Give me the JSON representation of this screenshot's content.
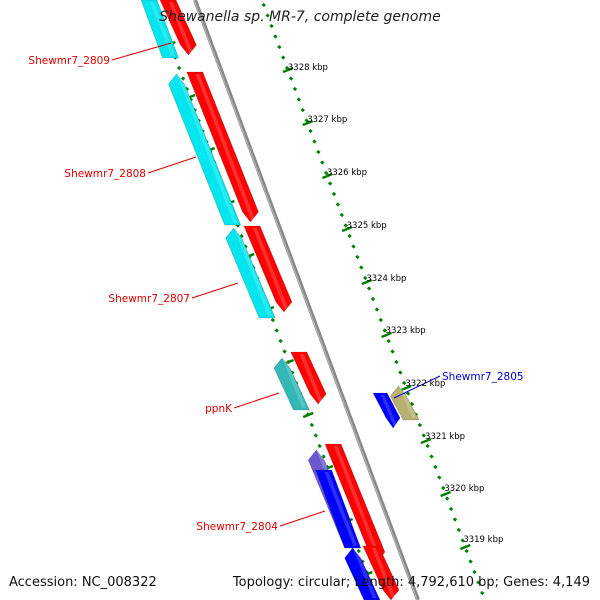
{
  "title": "Shewanella sp. MR-7, complete genome",
  "footer": {
    "accession": "Accession: NC_008322",
    "summary": "Topology: circular; Length: 4,792,610 bp; Genes: 4,149"
  },
  "colors": {
    "forward_cds": "#ff0000",
    "reverse_cds": "#00e5ee",
    "reverse_cds_alt": "#33b8b8",
    "other_feature": "#0000ff",
    "other_feature_2": "#6a5acd",
    "olive_feature": "#b8b070",
    "tick": "#008000",
    "backbone": "#888888",
    "label_red": "#dd0000",
    "label_blue": "#0000cc"
  },
  "scale_labels": [
    "3328 kbp",
    "3327 kbp",
    "3326 kbp",
    "3325 kbp",
    "3324 kbp",
    "3323 kbp",
    "3322 kbp",
    "3321 kbp",
    "3320 kbp",
    "3319 kbp"
  ],
  "gene_labels": [
    {
      "text": "Shewmr7_2809",
      "color": "red"
    },
    {
      "text": "Shewmr7_2808",
      "color": "red"
    },
    {
      "text": "Shewmr7_2807",
      "color": "red"
    },
    {
      "text": "ppnK",
      "color": "red"
    },
    {
      "text": "Shewmr7_2804",
      "color": "red"
    },
    {
      "text": "Shewmr7_2805",
      "color": "blue"
    }
  ]
}
